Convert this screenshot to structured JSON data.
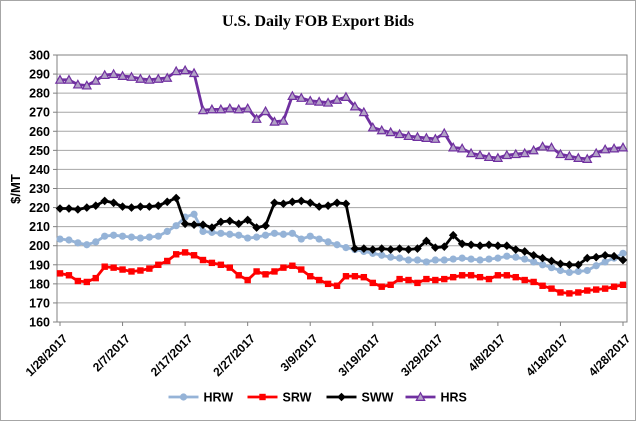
{
  "chart_data": {
    "type": "line",
    "title": "U.S. Daily FOB Export Bids",
    "xlabel": "",
    "ylabel": "$/MT",
    "ylim": [
      160,
      300
    ],
    "ytick_step": 10,
    "yticks": [
      160,
      170,
      180,
      190,
      200,
      210,
      220,
      230,
      240,
      250,
      260,
      270,
      280,
      290,
      300
    ],
    "grid": "horizontal-gridlines",
    "legend_position": "bottom",
    "x_tick_labels": [
      "1/28/2017",
      "2/7/2017",
      "2/17/2017",
      "2/27/2017",
      "3/9/2017",
      "3/19/2017",
      "3/29/2017",
      "4/8/2017",
      "4/18/2017",
      "4/28/2017"
    ],
    "points_per_tick": 7,
    "colors": {
      "hrw": "#95B3D7",
      "srw": "#FF0000",
      "sww": "#000000",
      "hrs": "#7030A0",
      "hrs_marker_fill": "#B3A2C7",
      "gridline": "#A6A6A6",
      "axis": "#808080"
    },
    "series": [
      {
        "name": "HRW",
        "color": "#95B3D7",
        "marker": "circle",
        "values": [
          203.5,
          203,
          201.5,
          200.5,
          202,
          205,
          205.5,
          205,
          204.5,
          204,
          204.5,
          205,
          207.5,
          210.5,
          215,
          216.5,
          207.5,
          207,
          206.5,
          206,
          205.5,
          204,
          204.5,
          205.5,
          206.5,
          206,
          206.5,
          203.5,
          205,
          203.5,
          202,
          200.5,
          199,
          198,
          197,
          196,
          195,
          194,
          193.5,
          192.5,
          192.5,
          191.5,
          192.5,
          192.5,
          193,
          193.5,
          193,
          192.5,
          193,
          193.5,
          194.5,
          194,
          193,
          191.5,
          190,
          188.5,
          187,
          186,
          186.5,
          187,
          189.5,
          191.5,
          193.5,
          196
        ]
      },
      {
        "name": "SRW",
        "color": "#FF0000",
        "marker": "square",
        "values": [
          185.5,
          184.5,
          181.5,
          181,
          183,
          189,
          188.5,
          187.5,
          186.5,
          187,
          188,
          190,
          192,
          195.5,
          196.5,
          195,
          192.5,
          191,
          190,
          188.5,
          184.5,
          182,
          186.5,
          185,
          186.5,
          188.5,
          189.5,
          187.5,
          184,
          182,
          180,
          179,
          184,
          184,
          183.5,
          180.5,
          178.5,
          179.5,
          182.5,
          182,
          180.5,
          182.5,
          182,
          182.5,
          183.5,
          184.5,
          184.5,
          183.5,
          182.5,
          184.5,
          184.5,
          183.5,
          182,
          181,
          179,
          177.5,
          175.5,
          175,
          175.5,
          176.5,
          177,
          177.5,
          178.5,
          179.5
        ]
      },
      {
        "name": "SWW",
        "color": "#000000",
        "marker": "diamond",
        "values": [
          219.5,
          219.5,
          219,
          220,
          221,
          223.5,
          222.5,
          220.5,
          220,
          220.5,
          220.5,
          221,
          223,
          225,
          211.5,
          211,
          211,
          209.5,
          212.5,
          213,
          211.5,
          213.5,
          209.5,
          210.5,
          222.5,
          222,
          223,
          223.5,
          222.5,
          220.5,
          221,
          222.5,
          222,
          198.5,
          198.5,
          198,
          198.5,
          198,
          198.5,
          198,
          198.5,
          202.5,
          199,
          199.5,
          205.5,
          201,
          200.5,
          200,
          200.5,
          200,
          200,
          198,
          197,
          195,
          193.5,
          192,
          190.5,
          190,
          190,
          193.5,
          194,
          195,
          194.5,
          192.5
        ]
      },
      {
        "name": "HRS",
        "color": "#7030A0",
        "marker": "triangle",
        "values": [
          287,
          287,
          284.5,
          284,
          286.5,
          289.5,
          290,
          289,
          288.5,
          287.5,
          287,
          287.5,
          288,
          291.5,
          292,
          290.5,
          271,
          271.5,
          271.5,
          272,
          271.5,
          272,
          266.5,
          270.5,
          265,
          265.5,
          278.5,
          277.5,
          276,
          275.5,
          275,
          276.5,
          278,
          273,
          270,
          262,
          260.5,
          259.5,
          258.5,
          257.5,
          257,
          256.5,
          256,
          259,
          251.5,
          251,
          248.5,
          247.5,
          246.5,
          246,
          247.5,
          248,
          248.5,
          250,
          252,
          251.5,
          248,
          247,
          246,
          245.5,
          248.5,
          250.5,
          251,
          251.5
        ]
      }
    ]
  }
}
